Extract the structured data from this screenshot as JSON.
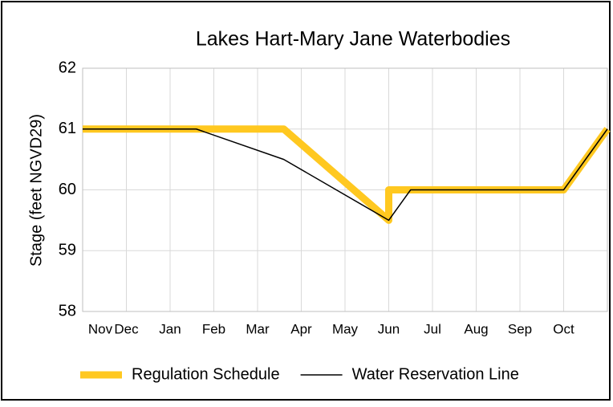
{
  "chart_data": {
    "type": "line",
    "title": "Lakes Hart-Mary Jane Waterbodies",
    "y_label": "Stage (feet NGVD29)",
    "xlim": [
      0,
      12
    ],
    "xticks": [
      {
        "value": 0,
        "label": "Nov"
      },
      {
        "value": 1,
        "label": "Dec"
      },
      {
        "value": 2,
        "label": "Jan"
      },
      {
        "value": 3,
        "label": "Feb"
      },
      {
        "value": 4,
        "label": "Mar"
      },
      {
        "value": 5,
        "label": "Apr"
      },
      {
        "value": 6,
        "label": "May"
      },
      {
        "value": 7,
        "label": "Jun"
      },
      {
        "value": 8,
        "label": "Jul"
      },
      {
        "value": 9,
        "label": "Aug"
      },
      {
        "value": 10,
        "label": "Sep"
      },
      {
        "value": 11,
        "label": "Oct"
      }
    ],
    "ylim": [
      58,
      62
    ],
    "yticks": [
      58,
      59,
      60,
      61,
      62
    ],
    "grid": true,
    "legend": "bottom",
    "series": [
      {
        "name": "Regulation Schedule",
        "color": "#ffc820",
        "width": 9,
        "x": [
          0,
          4.6,
          7,
          7,
          11,
          12
        ],
        "values": [
          61,
          61,
          59.5,
          60,
          60,
          61
        ]
      },
      {
        "name": "Water Reservation Line",
        "color": "#000000",
        "width": 1.5,
        "x": [
          0,
          2.6,
          4.6,
          7,
          7.5,
          11,
          12
        ],
        "values": [
          61,
          61,
          60.5,
          59.5,
          60,
          60,
          61
        ]
      }
    ]
  }
}
